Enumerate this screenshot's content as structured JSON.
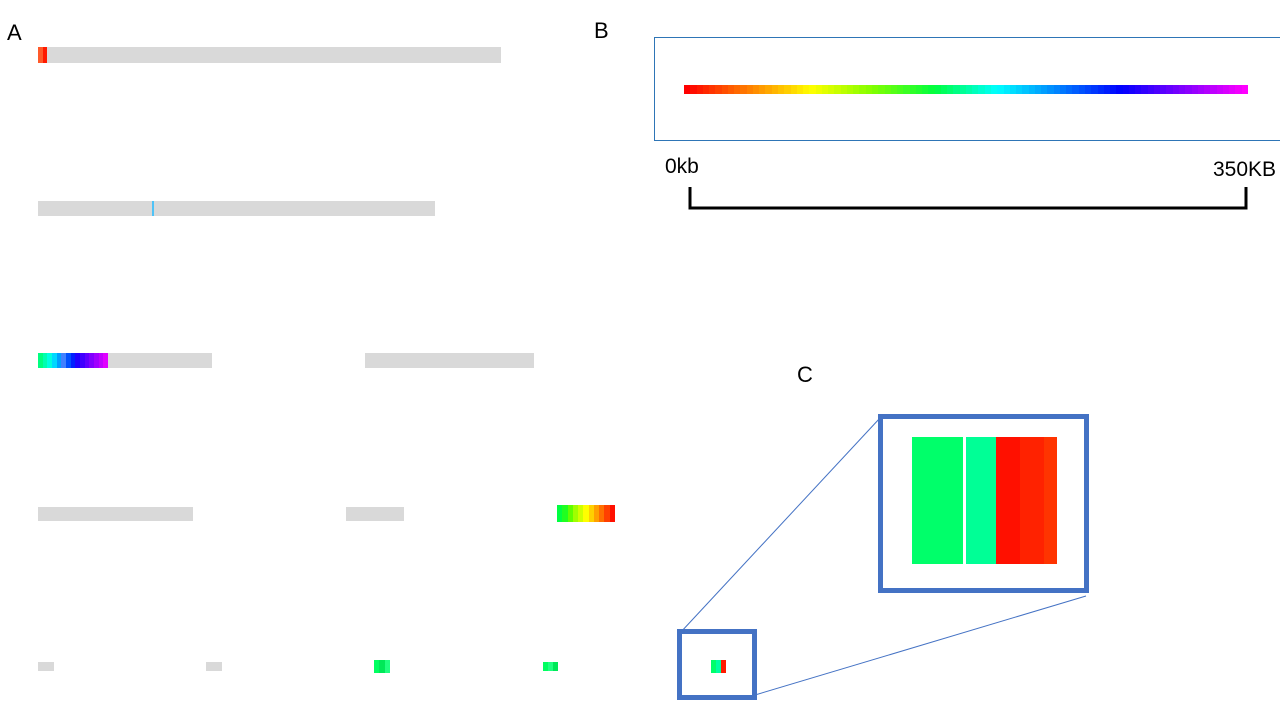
{
  "labels": {
    "a": "A",
    "b": "B",
    "c": "C"
  },
  "scale": {
    "start": "0kb",
    "end": "350KB"
  },
  "colors": {
    "track": "#d9d9d9",
    "box_border": "#2e75b6",
    "zoom_border": "#4472c4",
    "bracket": "#000000",
    "gradient": [
      "#ff0000",
      "#ff8000",
      "#ffff00",
      "#80ff00",
      "#00ff40",
      "#00ffff",
      "#0080ff",
      "#0000ff",
      "#8000ff",
      "#ff00ff"
    ]
  }
}
